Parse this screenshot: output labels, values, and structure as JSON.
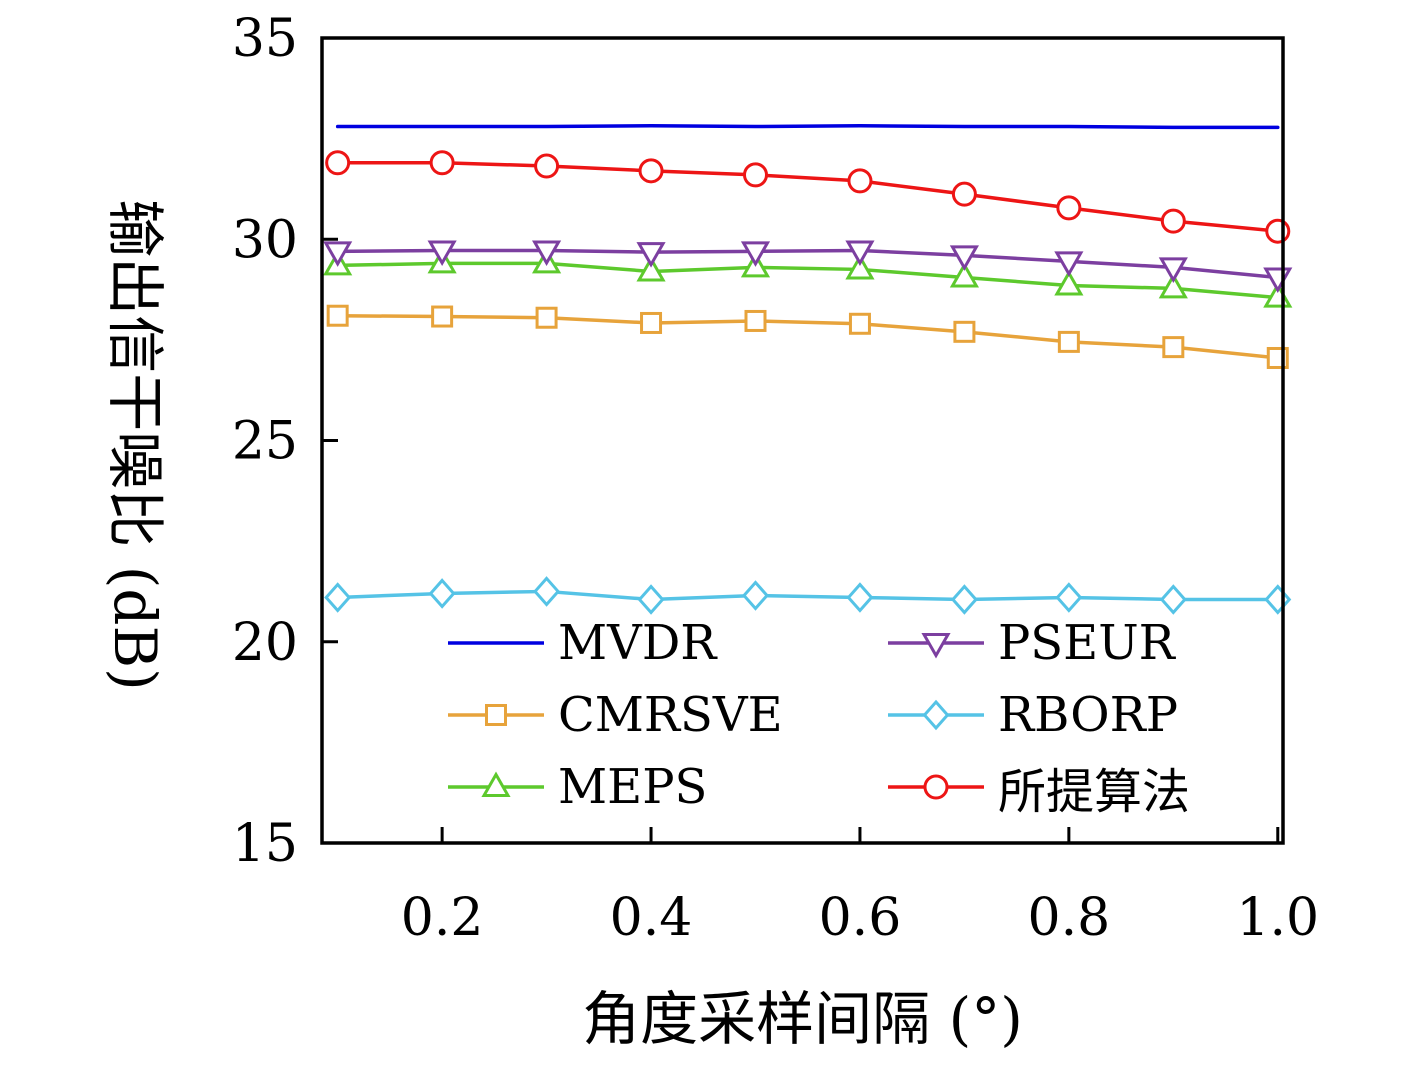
{
  "chart_data": {
    "type": "line",
    "title": "",
    "xlabel": "角度采样间隔 (°)",
    "ylabel": "输出信干噪比 (dB)",
    "xlim": [
      0.085,
      1.005
    ],
    "ylim": [
      15,
      35
    ],
    "grid": false,
    "xticks": {
      "values": [
        0.2,
        0.4,
        0.6,
        0.8,
        1.0
      ],
      "labels": [
        "0.2",
        "0.4",
        "0.6",
        "0.8",
        "1.0"
      ]
    },
    "yticks": {
      "values": [
        15,
        20,
        25,
        30,
        35
      ],
      "labels": [
        "15",
        "20",
        "25",
        "30",
        "35"
      ]
    },
    "x": [
      0.1,
      0.2,
      0.3,
      0.4,
      0.5,
      0.6,
      0.7,
      0.8,
      0.9,
      1.0
    ],
    "series": [
      {
        "name": "MVDR",
        "color": "#0000e0",
        "marker": "none",
        "values": [
          32.8,
          32.8,
          32.8,
          32.82,
          32.8,
          32.82,
          32.8,
          32.8,
          32.78,
          32.78
        ]
      },
      {
        "name": "CMRSVE",
        "color": "#e7a33b",
        "marker": "square",
        "values": [
          28.1,
          28.08,
          28.05,
          27.92,
          27.97,
          27.9,
          27.7,
          27.45,
          27.32,
          27.05
        ]
      },
      {
        "name": "MEPS",
        "color": "#5dc92d",
        "marker": "triangle-up",
        "values": [
          29.35,
          29.4,
          29.4,
          29.2,
          29.3,
          29.25,
          29.05,
          28.85,
          28.78,
          28.55
        ]
      },
      {
        "name": "PSEUR",
        "color": "#7c3fa0",
        "marker": "triangle-down",
        "values": [
          29.7,
          29.72,
          29.72,
          29.68,
          29.7,
          29.72,
          29.6,
          29.45,
          29.3,
          29.05
        ]
      },
      {
        "name": "RBORP",
        "color": "#55c3e6",
        "marker": "diamond",
        "values": [
          21.1,
          21.2,
          21.25,
          21.05,
          21.15,
          21.1,
          21.05,
          21.1,
          21.05,
          21.05
        ]
      },
      {
        "name": "所提算法",
        "color": "#ed1515",
        "marker": "circle",
        "values": [
          31.9,
          31.9,
          31.82,
          31.7,
          31.6,
          31.45,
          31.12,
          30.78,
          30.45,
          30.2
        ]
      }
    ],
    "legend": {
      "position": "lower-center-inside",
      "order": [
        0,
        3,
        1,
        4,
        2,
        5
      ]
    }
  }
}
